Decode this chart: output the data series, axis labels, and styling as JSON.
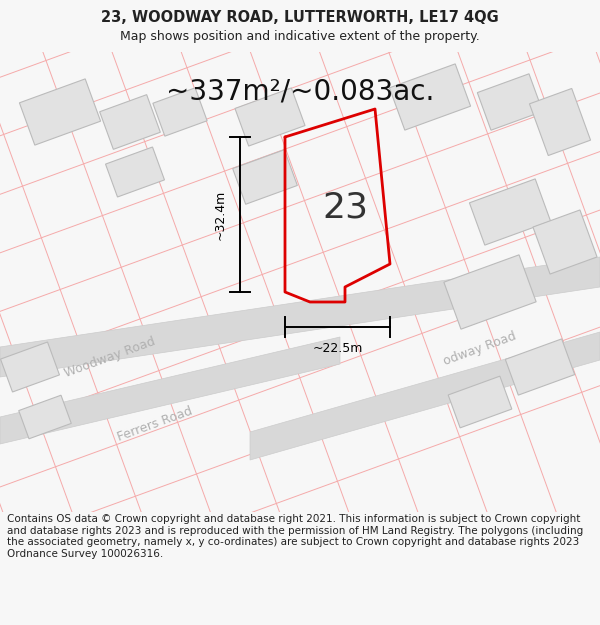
{
  "title": "23, WOODWAY ROAD, LUTTERWORTH, LE17 4QG",
  "subtitle": "Map shows position and indicative extent of the property.",
  "area_text": "~337m²/~0.083ac.",
  "number_label": "23",
  "dim_height": "~32.4m",
  "dim_width": "~22.5m",
  "footer": "Contains OS data © Crown copyright and database right 2021. This information is subject to Crown copyright and database rights 2023 and is reproduced with the permission of HM Land Registry. The polygons (including the associated geometry, namely x, y co-ordinates) are subject to Crown copyright and database rights 2023 Ordnance Survey 100026316.",
  "bg_color": "#f7f7f7",
  "map_bg": "#ffffff",
  "road_color": "#d8d8d8",
  "road_edge_color": "#cccccc",
  "red_line_color": "#dd0000",
  "pink_line_color": "#f5aaaa",
  "building_fill": "#e2e2e2",
  "building_stroke": "#bbbbbb",
  "road_label_color": "#b0b0b0",
  "title_fontsize": 10.5,
  "subtitle_fontsize": 9,
  "area_fontsize": 20,
  "number_fontsize": 26,
  "footer_fontsize": 7.5,
  "dim_fontsize": 9
}
